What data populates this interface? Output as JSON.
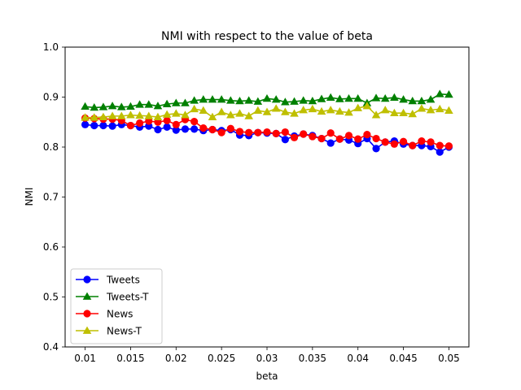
{
  "chart_data": {
    "type": "line",
    "title": "NMI with respect to the value of beta",
    "xlabel": "beta",
    "ylabel": "NMI",
    "xlim": [
      0.0078,
      0.0522
    ],
    "ylim": [
      0.4,
      1.0
    ],
    "xticks": [
      0.01,
      0.015,
      0.02,
      0.025,
      0.03,
      0.035,
      0.04,
      0.045,
      0.05
    ],
    "xtick_labels": [
      "0.01",
      "0.015",
      "0.02",
      "0.025",
      "0.03",
      "0.035",
      "0.04",
      "0.045",
      "0.05"
    ],
    "yticks": [
      0.4,
      0.5,
      0.6,
      0.7,
      0.8,
      0.9,
      1.0
    ],
    "ytick_labels": [
      "0.4",
      "0.5",
      "0.6",
      "0.7",
      "0.8",
      "0.9",
      "1.0"
    ],
    "grid": false,
    "legend_position": "lower-left",
    "x": [
      0.01,
      0.011,
      0.012,
      0.013,
      0.014,
      0.015,
      0.016,
      0.017,
      0.018,
      0.019,
      0.02,
      0.021,
      0.022,
      0.023,
      0.024,
      0.025,
      0.026,
      0.027,
      0.028,
      0.029,
      0.03,
      0.031,
      0.032,
      0.033,
      0.034,
      0.035,
      0.036,
      0.037,
      0.038,
      0.039,
      0.04,
      0.041,
      0.042,
      0.043,
      0.044,
      0.045,
      0.046,
      0.047,
      0.048,
      0.049,
      0.05
    ],
    "series": [
      {
        "name": "Tweets",
        "color": "#0000ff",
        "marker": "circle",
        "values": [
          0.845,
          0.843,
          0.843,
          0.842,
          0.845,
          0.843,
          0.84,
          0.842,
          0.835,
          0.84,
          0.834,
          0.836,
          0.836,
          0.833,
          0.835,
          0.833,
          0.835,
          0.824,
          0.823,
          0.829,
          0.828,
          0.827,
          0.815,
          0.822,
          0.826,
          0.823,
          0.817,
          0.808,
          0.816,
          0.814,
          0.807,
          0.817,
          0.797,
          0.81,
          0.812,
          0.806,
          0.803,
          0.803,
          0.801,
          0.79,
          0.8
        ]
      },
      {
        "name": "Tweets-T",
        "color": "#008000",
        "marker": "triangle",
        "values": [
          0.881,
          0.879,
          0.88,
          0.882,
          0.88,
          0.881,
          0.885,
          0.885,
          0.882,
          0.886,
          0.888,
          0.888,
          0.893,
          0.895,
          0.895,
          0.895,
          0.893,
          0.892,
          0.893,
          0.891,
          0.897,
          0.895,
          0.89,
          0.891,
          0.893,
          0.892,
          0.896,
          0.899,
          0.896,
          0.897,
          0.897,
          0.888,
          0.898,
          0.897,
          0.899,
          0.895,
          0.892,
          0.892,
          0.895,
          0.906,
          0.905
        ]
      },
      {
        "name": "News",
        "color": "#ff0000",
        "marker": "circle",
        "values": [
          0.858,
          0.857,
          0.856,
          0.856,
          0.853,
          0.843,
          0.848,
          0.852,
          0.85,
          0.853,
          0.845,
          0.855,
          0.851,
          0.838,
          0.835,
          0.829,
          0.837,
          0.831,
          0.829,
          0.829,
          0.83,
          0.827,
          0.83,
          0.819,
          0.826,
          0.821,
          0.817,
          0.828,
          0.816,
          0.823,
          0.816,
          0.825,
          0.817,
          0.81,
          0.806,
          0.811,
          0.803,
          0.812,
          0.81,
          0.803,
          0.802
        ]
      },
      {
        "name": "News-T",
        "color": "#bfbf00",
        "marker": "triangle",
        "values": [
          0.859,
          0.859,
          0.86,
          0.862,
          0.862,
          0.864,
          0.863,
          0.862,
          0.86,
          0.865,
          0.867,
          0.864,
          0.876,
          0.873,
          0.86,
          0.87,
          0.864,
          0.867,
          0.862,
          0.873,
          0.87,
          0.877,
          0.87,
          0.867,
          0.874,
          0.876,
          0.871,
          0.874,
          0.871,
          0.869,
          0.878,
          0.882,
          0.864,
          0.874,
          0.868,
          0.868,
          0.866,
          0.877,
          0.874,
          0.876,
          0.873
        ]
      }
    ]
  }
}
